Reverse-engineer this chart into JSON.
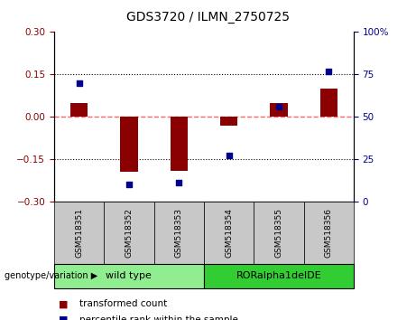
{
  "title": "GDS3720 / ILMN_2750725",
  "samples": [
    "GSM518351",
    "GSM518352",
    "GSM518353",
    "GSM518354",
    "GSM518355",
    "GSM518356"
  ],
  "red_values": [
    0.05,
    -0.195,
    -0.19,
    -0.03,
    0.05,
    0.1
  ],
  "blue_values_pct": [
    70,
    10,
    11,
    27,
    56,
    77
  ],
  "ylim_left": [
    -0.3,
    0.3
  ],
  "ylim_right": [
    0,
    100
  ],
  "yticks_left": [
    -0.3,
    -0.15,
    0,
    0.15,
    0.3
  ],
  "yticks_right": [
    0,
    25,
    50,
    75,
    100
  ],
  "bar_color": "#8B0000",
  "scatter_color": "#00008B",
  "zero_line_color": "#FF6666",
  "dotted_line_color": "#000000",
  "group1_label": "wild type",
  "group2_label": "RORalpha1delDE",
  "group1_color": "#90EE90",
  "group2_color": "#32CD32",
  "sample_box_color": "#C8C8C8",
  "genotype_label": "genotype/variation",
  "legend_red": "transformed count",
  "legend_blue": "percentile rank within the sample",
  "bar_width": 0.35,
  "title_fontsize": 10,
  "tick_fontsize": 7.5,
  "sample_fontsize": 6.5,
  "group_fontsize": 8,
  "legend_fontsize": 7.5
}
